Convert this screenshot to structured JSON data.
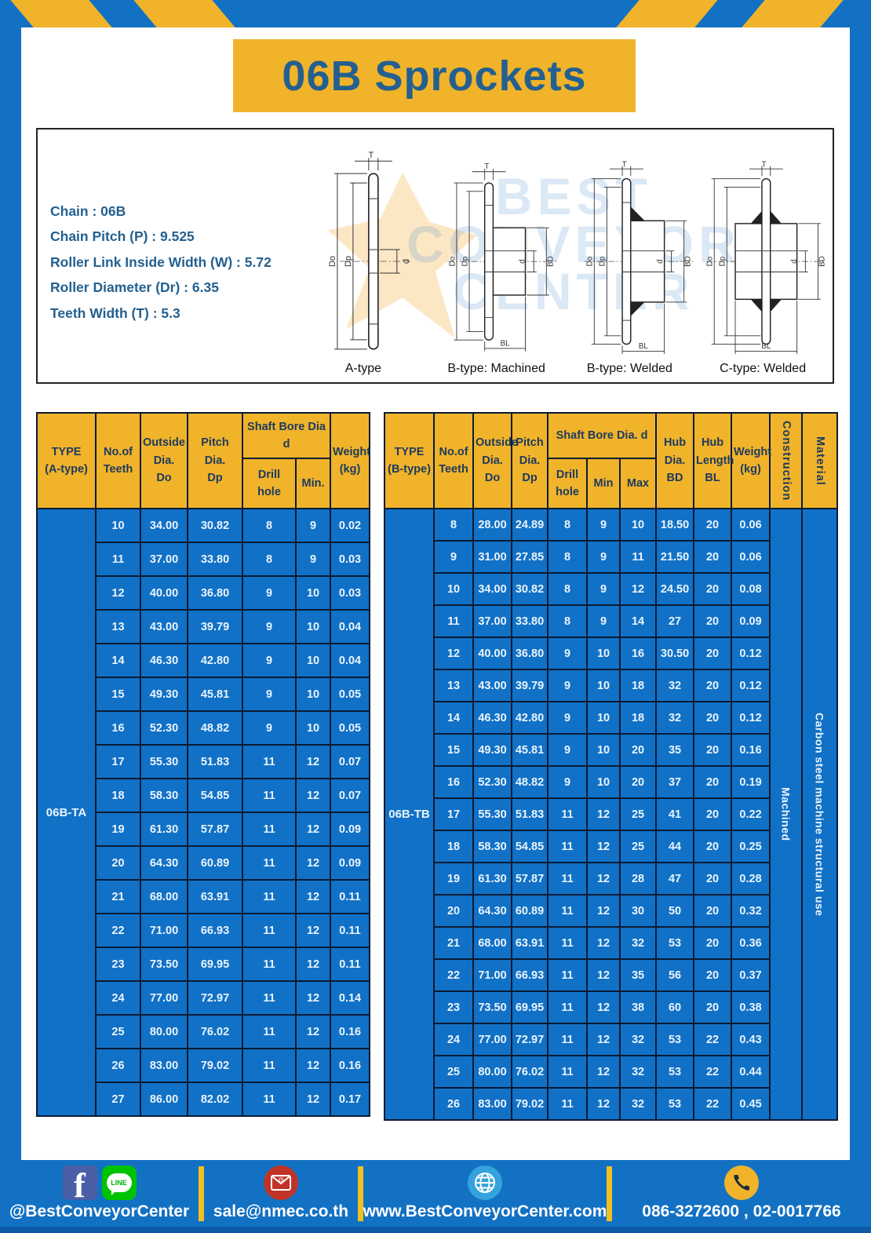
{
  "page": {
    "title": "06B Sprockets"
  },
  "colors": {
    "frame_blue": "#1371c3",
    "table_blue": "#1171c6",
    "accent_yellow": "#f0b32a",
    "title_text": "#24608f"
  },
  "specs": [
    "Chain  : 06B",
    "Chain Pitch (P)  :  9.525",
    "Roller Link Inside Width (W)  :  5.72",
    "Roller Diameter (Dr)  : 6.35",
    "Teeth Width (T)  :  5.3"
  ],
  "watermark": {
    "line1": "BEST",
    "line2": "CONVEYOR",
    "line3": "CENTER"
  },
  "drawings": {
    "captions": [
      "A-type",
      "B-type: Machined",
      "B-type: Welded",
      "C-type: Welded"
    ],
    "dims": {
      "t": "T",
      "do": "Do",
      "dp": "Dp",
      "d": "d",
      "bd": "BD",
      "bl": "BL"
    }
  },
  "table_a": {
    "header": {
      "type": "TYPE\n(A-type)",
      "teeth": "No.of\nTeeth",
      "outside": "Outside\nDia.\nDo",
      "pitch": "Pitch Dia.\nDp",
      "shaft_bore": "Shaft Bore Dia d",
      "drill": "Drill hole",
      "min": "Min.",
      "weight": "Weight\n(kg)"
    },
    "type_label": "06B-TA",
    "rows": [
      [
        "10",
        "34.00",
        "30.82",
        "8",
        "9",
        "0.02"
      ],
      [
        "11",
        "37.00",
        "33.80",
        "8",
        "9",
        "0.03"
      ],
      [
        "12",
        "40.00",
        "36.80",
        "9",
        "10",
        "0.03"
      ],
      [
        "13",
        "43.00",
        "39.79",
        "9",
        "10",
        "0.04"
      ],
      [
        "14",
        "46.30",
        "42.80",
        "9",
        "10",
        "0.04"
      ],
      [
        "15",
        "49.30",
        "45.81",
        "9",
        "10",
        "0.05"
      ],
      [
        "16",
        "52.30",
        "48.82",
        "9",
        "10",
        "0.05"
      ],
      [
        "17",
        "55.30",
        "51.83",
        "11",
        "12",
        "0.07"
      ],
      [
        "18",
        "58.30",
        "54.85",
        "11",
        "12",
        "0.07"
      ],
      [
        "19",
        "61.30",
        "57.87",
        "11",
        "12",
        "0.09"
      ],
      [
        "20",
        "64.30",
        "60.89",
        "11",
        "12",
        "0.09"
      ],
      [
        "21",
        "68.00",
        "63.91",
        "11",
        "12",
        "0.11"
      ],
      [
        "22",
        "71.00",
        "66.93",
        "11",
        "12",
        "0.11"
      ],
      [
        "23",
        "73.50",
        "69.95",
        "11",
        "12",
        "0.11"
      ],
      [
        "24",
        "77.00",
        "72.97",
        "11",
        "12",
        "0.14"
      ],
      [
        "25",
        "80.00",
        "76.02",
        "11",
        "12",
        "0.16"
      ],
      [
        "26",
        "83.00",
        "79.02",
        "11",
        "12",
        "0.16"
      ],
      [
        "27",
        "86.00",
        "82.02",
        "11",
        "12",
        "0.17"
      ]
    ]
  },
  "table_b": {
    "header": {
      "type": "TYPE\n(B-type)",
      "teeth": "No.of\nTeeth",
      "outside": "Outside\nDia.\nDo",
      "pitch": "Pitch\nDia.\nDp",
      "shaft_bore": "Shaft Bore Dia.  d",
      "drill": "Drill hole",
      "min": "Min",
      "max": "Max",
      "hub_dia": "Hub\nDia.\nBD",
      "hub_len": "Hub\nLength\nBL",
      "weight": "Weight\n(kg)",
      "construction": "Construction",
      "material": "Material"
    },
    "type_label": "06B-TB",
    "construction": "Machined",
    "material": "Carbon  steel  machine  structural  use",
    "rows": [
      [
        "8",
        "28.00",
        "24.89",
        "8",
        "9",
        "10",
        "18.50",
        "20",
        "0.06"
      ],
      [
        "9",
        "31.00",
        "27.85",
        "8",
        "9",
        "11",
        "21.50",
        "20",
        "0.06"
      ],
      [
        "10",
        "34.00",
        "30.82",
        "8",
        "9",
        "12",
        "24.50",
        "20",
        "0.08"
      ],
      [
        "11",
        "37.00",
        "33.80",
        "8",
        "9",
        "14",
        "27",
        "20",
        "0.09"
      ],
      [
        "12",
        "40.00",
        "36.80",
        "9",
        "10",
        "16",
        "30.50",
        "20",
        "0.12"
      ],
      [
        "13",
        "43.00",
        "39.79",
        "9",
        "10",
        "18",
        "32",
        "20",
        "0.12"
      ],
      [
        "14",
        "46.30",
        "42.80",
        "9",
        "10",
        "18",
        "32",
        "20",
        "0.12"
      ],
      [
        "15",
        "49.30",
        "45.81",
        "9",
        "10",
        "20",
        "35",
        "20",
        "0.16"
      ],
      [
        "16",
        "52.30",
        "48.82",
        "9",
        "10",
        "20",
        "37",
        "20",
        "0.19"
      ],
      [
        "17",
        "55.30",
        "51.83",
        "11",
        "12",
        "25",
        "41",
        "20",
        "0.22"
      ],
      [
        "18",
        "58.30",
        "54.85",
        "11",
        "12",
        "25",
        "44",
        "20",
        "0.25"
      ],
      [
        "19",
        "61.30",
        "57.87",
        "11",
        "12",
        "28",
        "47",
        "20",
        "0.28"
      ],
      [
        "20",
        "64.30",
        "60.89",
        "11",
        "12",
        "30",
        "50",
        "20",
        "0.32"
      ],
      [
        "21",
        "68.00",
        "63.91",
        "11",
        "12",
        "32",
        "53",
        "20",
        "0.36"
      ],
      [
        "22",
        "71.00",
        "66.93",
        "11",
        "12",
        "35",
        "56",
        "20",
        "0.37"
      ],
      [
        "23",
        "73.50",
        "69.95",
        "11",
        "12",
        "38",
        "60",
        "20",
        "0.38"
      ],
      [
        "24",
        "77.00",
        "72.97",
        "11",
        "12",
        "32",
        "53",
        "22",
        "0.43"
      ],
      [
        "25",
        "80.00",
        "76.02",
        "11",
        "12",
        "32",
        "53",
        "22",
        "0.44"
      ],
      [
        "26",
        "83.00",
        "79.02",
        "11",
        "12",
        "32",
        "53",
        "22",
        "0.45"
      ]
    ]
  },
  "footer": {
    "facebook_letter": "f",
    "line_text": "LINE",
    "social": "@BestConveyorCenter",
    "email": "sale@nmec.co.th",
    "website": "www.BestConveyorCenter.com",
    "phone": "086-3272600 , 02-0017766"
  }
}
